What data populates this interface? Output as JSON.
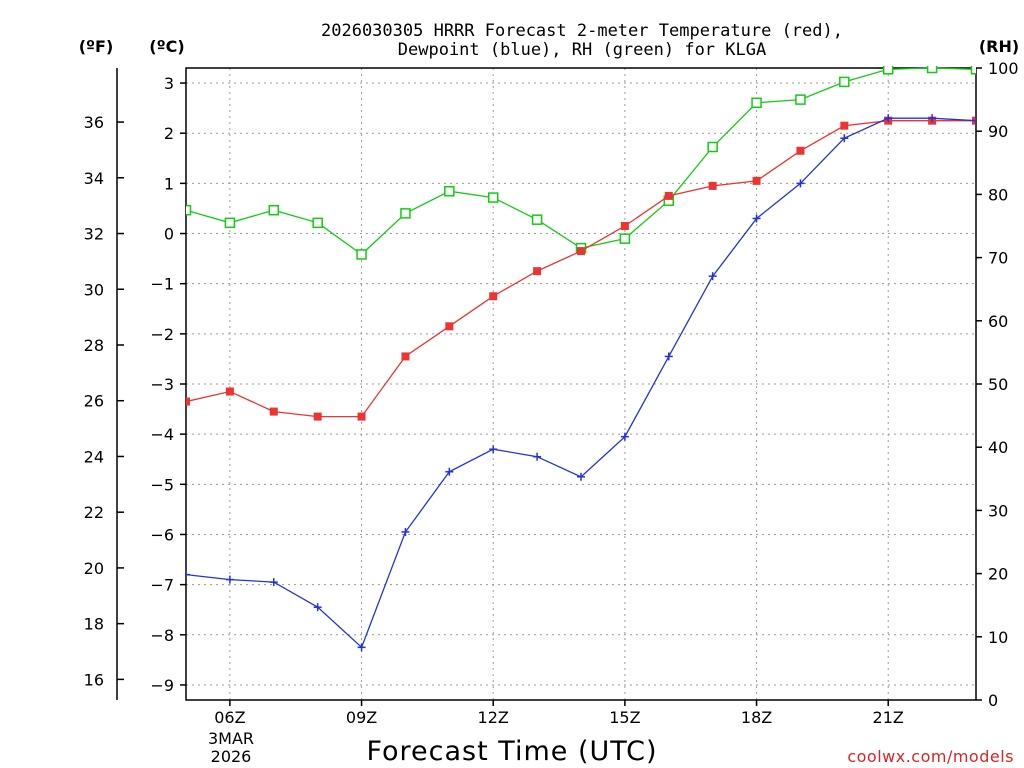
{
  "chart_data": {
    "type": "line",
    "title_line1": "2026030305 HRRR Forecast 2-meter Temperature (red),",
    "title_line2": "Dewpoint (blue), RH (green) for KLGA",
    "xlabel": "Forecast Time (UTC)",
    "credit": "coolwx.com/models",
    "date_label": [
      "3MAR",
      "2026"
    ],
    "axis_units": {
      "fahrenheit": "(ºF)",
      "celsius": "(ºC)",
      "rh": "(RH)"
    },
    "x_hours": [
      5,
      6,
      7,
      8,
      9,
      10,
      11,
      12,
      13,
      14,
      15,
      16,
      17,
      18,
      19,
      20,
      21,
      22,
      23
    ],
    "xlim": [
      5,
      23
    ],
    "x_ticks": [
      {
        "hour": 6,
        "label": "06Z"
      },
      {
        "hour": 9,
        "label": "09Z"
      },
      {
        "hour": 12,
        "label": "12Z"
      },
      {
        "hour": 15,
        "label": "15Z"
      },
      {
        "hour": 18,
        "label": "18Z"
      },
      {
        "hour": 21,
        "label": "21Z"
      }
    ],
    "celsius_axis": {
      "range": [
        -9.3,
        3.3
      ],
      "ticks": [
        3,
        2,
        1,
        0,
        -1,
        -2,
        -3,
        -4,
        -5,
        -6,
        -7,
        -8,
        -9
      ],
      "tick_labels": [
        "3",
        "2",
        "1",
        "0",
        "−1",
        "−2",
        "−3",
        "−4",
        "−5",
        "−6",
        "−7",
        "−8",
        "−9"
      ]
    },
    "fahrenheit_axis": {
      "ticks": [
        16,
        18,
        20,
        22,
        24,
        26,
        28,
        30,
        32,
        34,
        36
      ],
      "tick_labels": [
        "16",
        "18",
        "20",
        "22",
        "24",
        "26",
        "28",
        "30",
        "32",
        "34",
        "36"
      ]
    },
    "rh_axis": {
      "range": [
        0,
        100
      ],
      "ticks": [
        0,
        10,
        20,
        30,
        40,
        50,
        60,
        70,
        80,
        90,
        100
      ],
      "tick_labels": [
        "0",
        "10",
        "20",
        "30",
        "40",
        "50",
        "60",
        "70",
        "80",
        "90",
        "100"
      ]
    },
    "grid": true,
    "series": [
      {
        "name": "2-meter Temperature",
        "color": "#ee3333",
        "marker": "filled-square",
        "axis": "celsius",
        "values": [
          -3.35,
          -3.15,
          -3.55,
          -3.65,
          -3.65,
          -2.45,
          -1.85,
          -1.25,
          -0.75,
          -0.35,
          0.15,
          0.75,
          0.95,
          1.05,
          1.65,
          2.15,
          2.25,
          2.25,
          2.25
        ]
      },
      {
        "name": "Dewpoint",
        "color": "#2233dd",
        "marker": "plus",
        "axis": "celsius",
        "values": [
          -6.8,
          -6.9,
          -6.95,
          -7.45,
          -8.25,
          -5.95,
          -4.75,
          -4.3,
          -4.45,
          -4.85,
          -4.05,
          -2.45,
          -0.85,
          0.3,
          1.0,
          1.9,
          2.3,
          2.3,
          2.25
        ]
      },
      {
        "name": "Relative Humidity",
        "color": "#11cc11",
        "marker": "open-square",
        "axis": "rh",
        "values": [
          77.5,
          75.5,
          77.5,
          75.5,
          70.5,
          77.0,
          80.5,
          79.5,
          76.0,
          71.5,
          73.0,
          79.0,
          87.5,
          94.5,
          95.0,
          97.8,
          99.8,
          100.0,
          99.8
        ]
      }
    ]
  }
}
